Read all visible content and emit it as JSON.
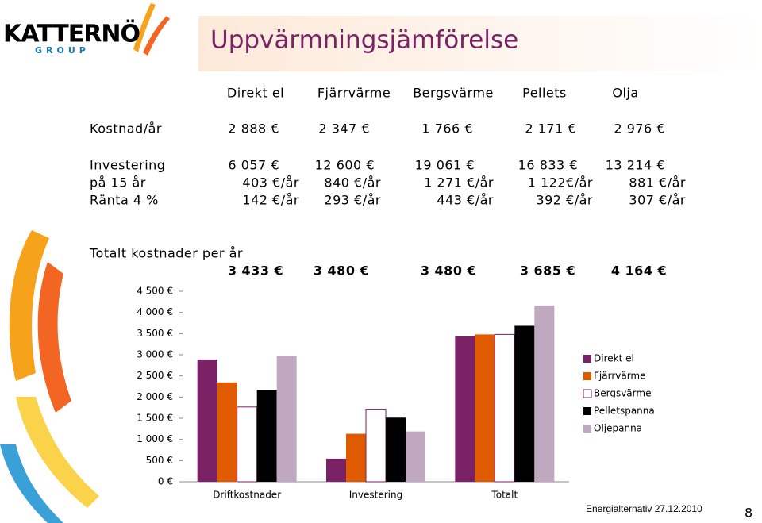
{
  "logo": {
    "name": "KATTERNÖ",
    "sub": "GROUP"
  },
  "header": {
    "title": "Uppvärmningsjämförelse"
  },
  "table": {
    "columns": [
      "Direkt el",
      "Fjärrvärme",
      "Bergsvärme",
      "Pellets",
      "Olja"
    ],
    "rows": [
      {
        "label": "Kostnad/år",
        "cells": [
          "2 888 €",
          "2 347 €",
          "1 766 €",
          "2 171 €",
          "2 976 €"
        ]
      },
      {
        "label": "Investering",
        "cells": [
          "6 057 €",
          "12 600 €",
          "19 061 €",
          "16 833 €",
          "13 214 €"
        ]
      },
      {
        "label": "på 15 år",
        "cells": [
          "403 €/år",
          "840 €/år",
          "1 271 €/år",
          "1 122€/år",
          "881 €/år"
        ]
      },
      {
        "label": "Ränta 4 %",
        "cells": [
          "142 €/år",
          "293 €/år",
          "443 €/år",
          "392 €/år",
          "307 €/år"
        ]
      }
    ]
  },
  "totals": {
    "title": "Totalt kostnader per år",
    "values": [
      "3 433 €",
      "3 480 €",
      "3 480 €",
      "3 685 €",
      "4 164 €"
    ]
  },
  "chart_data": {
    "type": "bar",
    "categories": [
      "Driftkostnader",
      "Investering",
      "Totalt"
    ],
    "series": [
      {
        "name": "Direkt el",
        "color": "#7b2266",
        "values": [
          2888,
          545,
          3433
        ]
      },
      {
        "name": "Fjärrvärme",
        "color": "#e05a00",
        "values": [
          2347,
          1133,
          3480
        ]
      },
      {
        "name": "Bergsvärme",
        "color": "#ffffff",
        "values": [
          1766,
          1714,
          3480
        ]
      },
      {
        "name": "Pelletspanna",
        "color": "#000000",
        "values": [
          2171,
          1514,
          3685
        ]
      },
      {
        "name": "Oljepanna",
        "color": "#c0a8c0",
        "values": [
          2976,
          1188,
          4164
        ]
      }
    ],
    "ylim": [
      0,
      4500
    ],
    "yticks": [
      {
        "value": 0,
        "label": "0 €"
      },
      {
        "value": 500,
        "label": "500 €"
      },
      {
        "value": 1000,
        "label": "1 000 €"
      },
      {
        "value": 1500,
        "label": "1 500 €"
      },
      {
        "value": 2000,
        "label": "2 000 €"
      },
      {
        "value": 2500,
        "label": "2 500 €"
      },
      {
        "value": 3000,
        "label": "3 000 €"
      },
      {
        "value": 3500,
        "label": "3 500 €"
      },
      {
        "value": 4000,
        "label": "4 000 €"
      },
      {
        "value": 4500,
        "label": "4 500 €"
      }
    ],
    "grid": false,
    "legend": "right"
  },
  "footer": {
    "text": "Energialternativ 27.12.2010",
    "page": "8"
  }
}
